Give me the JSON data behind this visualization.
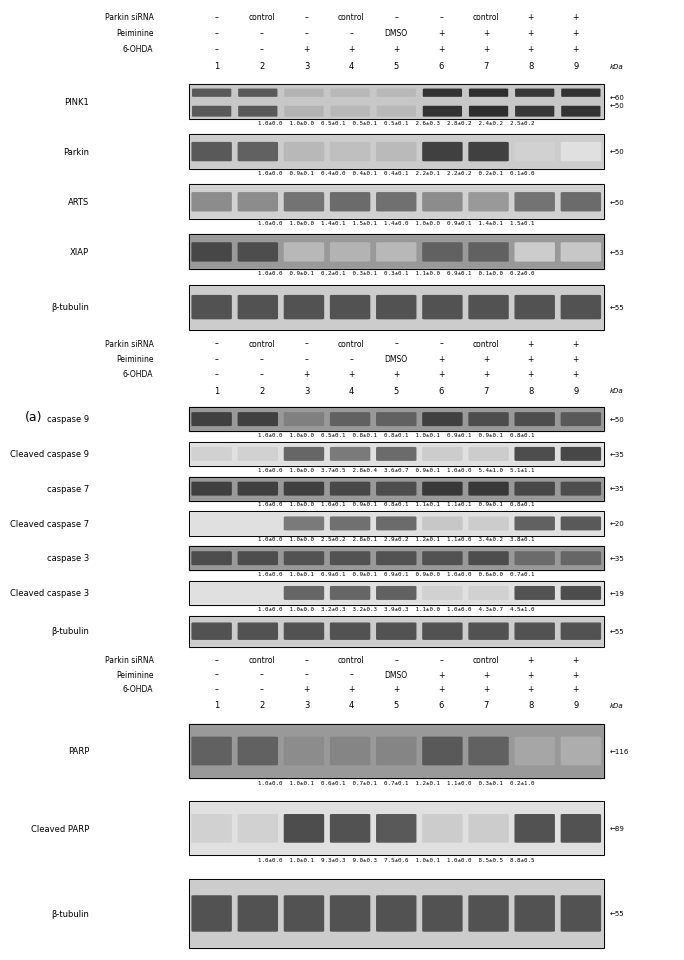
{
  "fig_width": 6.5,
  "fig_height": 9.6,
  "bg_color": "#ffffff",
  "panel1": {
    "header_labels": {
      "parkin_sirna": [
        "–",
        "control",
        "–",
        "control",
        "–",
        "–",
        "control",
        "+",
        "+"
      ],
      "peiminine": [
        "–",
        "–",
        "–",
        "–",
        "DMSO",
        "+",
        "+",
        "+",
        "+"
      ],
      "ohda": [
        "–",
        "–",
        "+",
        "+",
        "+",
        "+",
        "+",
        "+",
        "+"
      ]
    },
    "lane_nums": [
      "1",
      "2",
      "3",
      "4",
      "5",
      "6",
      "7",
      "8",
      "9"
    ],
    "blots": [
      {
        "label": "PINK1",
        "kda": "←60\n←50",
        "kda_vals": [
          "60",
          "50"
        ],
        "stats": "1.0±0.0  1.0±0.0  0.5±0.1  0.5±0.1  0.5±0.1  2.6±0.3  2.8±0.2  2.4±0.2  2.5±0.2",
        "double_band": true,
        "img_gray": 0.75
      },
      {
        "label": "Parkin",
        "kda": "←50",
        "kda_vals": [
          "50"
        ],
        "stats": "1.0±0.0  0.9±0.1  0.4±0.0  0.4±0.1  0.4±0.1  2.2±0.1  2.2±0.2  0.2±0.1  0.1±0.0",
        "double_band": false,
        "img_gray": 0.8
      },
      {
        "label": "ARTS",
        "kda": "←50",
        "kda_vals": [
          "50"
        ],
        "stats": "1.0±0.0  1.0±0.0  1.4±0.1  1.5±0.1  1.4±0.0  1.0±0.0  0.9±0.1  1.4±0.1  1.5±0.1",
        "double_band": false,
        "img_gray": 0.82
      },
      {
        "label": "XIAP",
        "kda": "←53",
        "kda_vals": [
          "53"
        ],
        "stats": "1.0±0.0  0.9±0.1  0.2±0.1  0.3±0.1  0.3±0.1  1.1±0.0  0.9±0.1  0.1±0.0  0.2±0.0",
        "double_band": false,
        "img_gray": 0.65
      },
      {
        "label": "β-tubulin",
        "kda": "←55",
        "kda_vals": [
          "55"
        ],
        "stats": "",
        "double_band": false,
        "img_gray": 0.78
      }
    ]
  },
  "panel2": {
    "header_labels": {
      "parkin_sirna": [
        "–",
        "control",
        "–",
        "control",
        "–",
        "–",
        "control",
        "+",
        "+"
      ],
      "peiminine": [
        "–",
        "–",
        "–",
        "–",
        "DMSO",
        "+",
        "+",
        "+",
        "+"
      ],
      "ohda": [
        "–",
        "–",
        "+",
        "+",
        "+",
        "+",
        "+",
        "+",
        "+"
      ]
    },
    "lane_nums": [
      "1",
      "2",
      "3",
      "4",
      "5",
      "6",
      "7",
      "8",
      "9"
    ],
    "blots": [
      {
        "label": "caspase 9",
        "kda": "←50",
        "kda_vals": [
          "50"
        ],
        "stats": "1.0±0.0  1.0±0.0  0.5±0.1  0.8±0.1  0.8±0.1  1.0±0.1  0.9±0.1  0.9±0.1  0.8±0.1",
        "double_band": false,
        "img_gray": 0.55
      },
      {
        "label": "Cleaved caspase 9",
        "kda": "←35",
        "kda_vals": [
          "35"
        ],
        "stats": "1.0±0.0  1.0±0.0  3.7±0.5  2.8±0.4  3.6±0.7  0.9±0.1  1.0±0.0  5.4±1.0  5.1±1.1",
        "double_band": false,
        "img_gray": 0.88
      },
      {
        "label": "caspase 7",
        "kda": "←35",
        "kda_vals": [
          "35"
        ],
        "stats": "1.0±0.0  1.0±0.0  1.0±0.1  0.9±0.1  0.8±0.1  1.1±0.1  1.1±0.1  0.9±0.1  0.8±0.1",
        "double_band": false,
        "img_gray": 0.55
      },
      {
        "label": "Cleaved caspase 7",
        "kda": "←20",
        "kda_vals": [
          "20"
        ],
        "stats": "1.0±0.0  1.0±0.0  2.5±0.2  2.8±0.1  2.9±0.2  1.2±0.1  1.1±0.0  3.4±0.2  3.8±0.1",
        "double_band": false,
        "img_gray": 0.9
      },
      {
        "label": "caspase 3",
        "kda": "←35",
        "kda_vals": [
          "35"
        ],
        "stats": "1.0±0.0  1.0±0.1  0.9±0.1  0.9±0.1  0.9±0.1  0.9±0.0  1.0±0.0  0.6±0.0  0.7±0.1",
        "double_band": false,
        "img_gray": 0.6
      },
      {
        "label": "Cleaved caspase 3",
        "kda": "←19",
        "kda_vals": [
          "19"
        ],
        "stats": "1.0±0.0  1.0±0.0  3.2±0.3  3.2±0.3  3.9±0.3  1.1±0.0  1.0±0.0  4.3±0.7  4.5±1.0",
        "double_band": false,
        "img_gray": 0.9
      },
      {
        "label": "β-tubulin",
        "kda": "←55",
        "kda_vals": [
          "55"
        ],
        "stats": "",
        "double_band": false,
        "img_gray": 0.78
      }
    ]
  },
  "panel3": {
    "header_labels": {
      "parkin_sirna": [
        "–",
        "control",
        "–",
        "control",
        "–",
        "–",
        "control",
        "+",
        "+"
      ],
      "peiminine": [
        "–",
        "–",
        "–",
        "–",
        "DMSO",
        "+",
        "+",
        "+",
        "+"
      ],
      "ohda": [
        "–",
        "–",
        "+",
        "+",
        "+",
        "+",
        "+",
        "+",
        "+"
      ]
    },
    "lane_nums": [
      "1",
      "2",
      "3",
      "4",
      "5",
      "6",
      "7",
      "8",
      "9"
    ],
    "blots": [
      {
        "label": "PARP",
        "kda": "←116",
        "kda_vals": [
          "116"
        ],
        "stats": "1.0±0.0  1.0±0.1  0.6±0.1  0.7±0.1  0.7±0.1  1.2±0.1  1.1±0.0  0.3±0.1  0.2±1.0",
        "double_band": false,
        "img_gray": 0.72
      },
      {
        "label": "Cleaved PARP",
        "kda": "←89",
        "kda_vals": [
          "89"
        ],
        "stats": "1.0±0.0  1.0±0.1  9.3±0.3  9.0±0.3  7.5±0.6  1.0±0.1  1.0±0.0  8.5±0.5  8.8±0.5",
        "double_band": false,
        "img_gray": 0.85
      },
      {
        "label": "β-tubulin",
        "kda": "←55",
        "kda_vals": [
          "55"
        ],
        "stats": "",
        "double_band": false,
        "img_gray": 0.78
      }
    ]
  }
}
